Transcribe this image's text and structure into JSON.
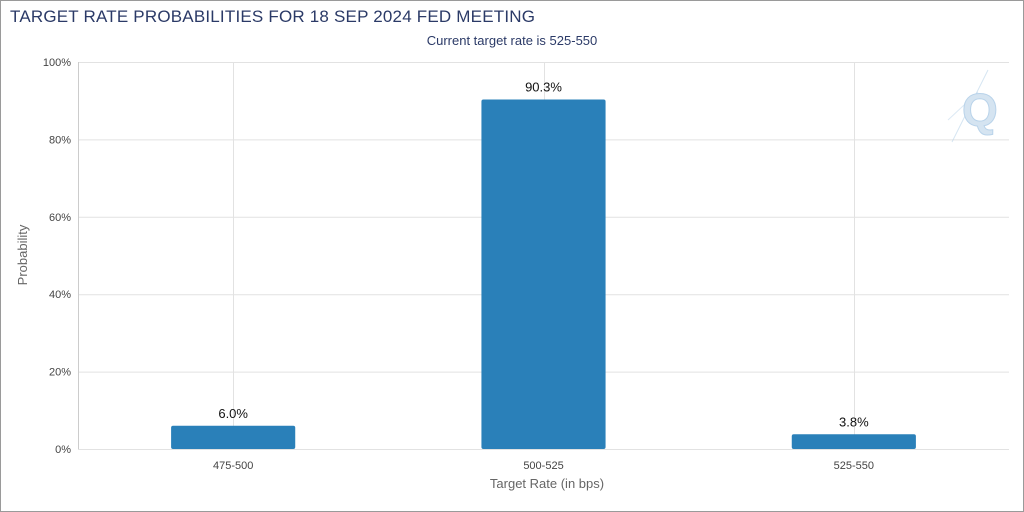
{
  "title": "TARGET RATE PROBABILITIES FOR 18 SEP 2024 FED MEETING",
  "subtitle": "Current target rate is 525-550",
  "colors": {
    "bar": "#2a80b9",
    "grid": "#e2e2e2",
    "axis": "#cccccc",
    "title": "#2b3a67",
    "watermark": "#b9d3ea"
  },
  "watermark_icon": "q-logo-icon",
  "chart_data": {
    "type": "bar",
    "categories": [
      "475-500",
      "500-525",
      "525-550"
    ],
    "values": [
      6.0,
      90.3,
      3.8
    ],
    "value_labels": [
      "6.0%",
      "90.3%",
      "3.8%"
    ],
    "xlabel": "Target Rate (in bps)",
    "ylabel": "Probability",
    "ylim": [
      0,
      100
    ],
    "yticks": [
      0,
      20,
      40,
      60,
      80,
      100
    ],
    "ytick_labels": [
      "0%",
      "20%",
      "40%",
      "60%",
      "80%",
      "100%"
    ],
    "grid": true,
    "legend": false
  }
}
